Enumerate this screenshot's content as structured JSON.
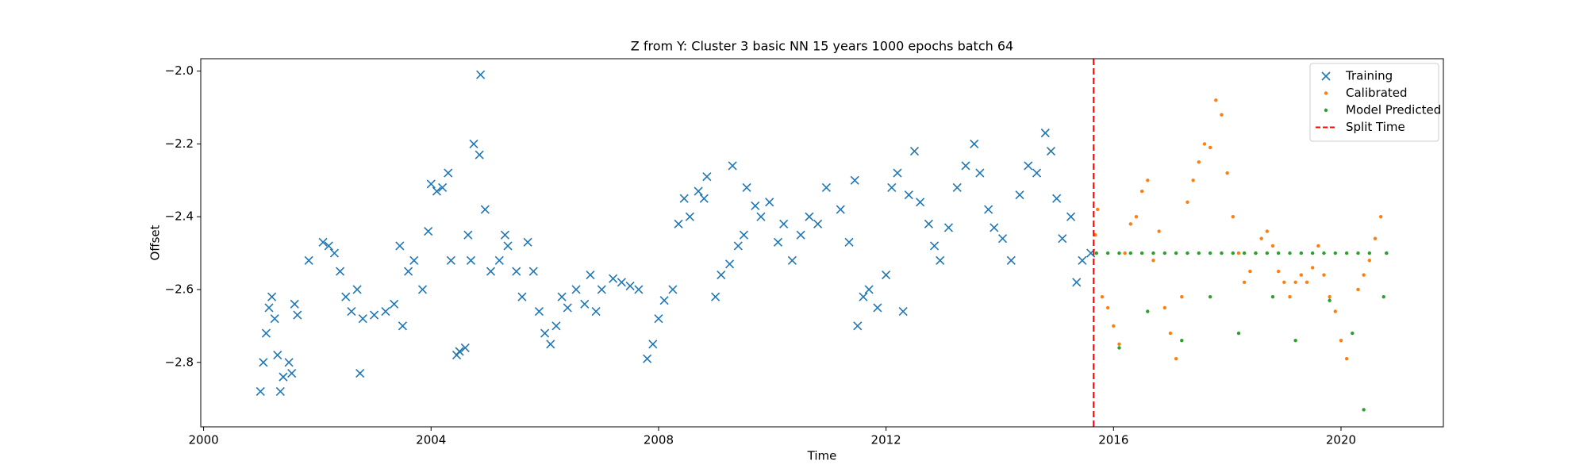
{
  "chart_data": {
    "type": "scatter",
    "title": "Z from Y: Cluster 3 basic NN 15 years 1000 epochs batch 64",
    "x_label": "Time",
    "y_label": "Offset",
    "xlim": [
      1999.95,
      2021.8
    ],
    "ylim": [
      -2.977,
      -1.966
    ],
    "xticks": [
      2000,
      2004,
      2008,
      2012,
      2016,
      2020
    ],
    "yticks": [
      {
        "value": -2.8,
        "label": "−2.8"
      },
      {
        "value": -2.6,
        "label": "−2.6"
      },
      {
        "value": -2.4,
        "label": "−2.4"
      },
      {
        "value": -2.2,
        "label": "−2.2"
      },
      {
        "value": -2.0,
        "label": "−2.0"
      }
    ],
    "legend": "upper right",
    "series": [
      {
        "name": "Training",
        "color": "#1f77b4",
        "marker": "x",
        "x": [
          2001.0,
          2001.05,
          2001.1,
          2001.15,
          2001.2,
          2001.25,
          2001.3,
          2001.35,
          2001.4,
          2001.5,
          2001.55,
          2001.6,
          2001.65,
          2001.85,
          2002.1,
          2002.2,
          2002.3,
          2002.4,
          2002.5,
          2002.6,
          2002.7,
          2002.75,
          2002.8,
          2003.0,
          2003.2,
          2003.35,
          2003.45,
          2003.5,
          2003.6,
          2003.7,
          2003.85,
          2003.95,
          2004.0,
          2004.1,
          2004.2,
          2004.3,
          2004.35,
          2004.45,
          2004.5,
          2004.6,
          2004.65,
          2004.7,
          2004.75,
          2004.85,
          2004.87,
          2004.95,
          2005.05,
          2005.2,
          2005.3,
          2005.35,
          2005.5,
          2005.6,
          2005.7,
          2005.8,
          2005.9,
          2006.0,
          2006.1,
          2006.2,
          2006.3,
          2006.4,
          2006.55,
          2006.7,
          2006.8,
          2006.9,
          2007.0,
          2007.2,
          2007.35,
          2007.5,
          2007.65,
          2007.8,
          2007.9,
          2008.0,
          2008.1,
          2008.25,
          2008.35,
          2008.45,
          2008.55,
          2008.7,
          2008.8,
          2008.85,
          2009.0,
          2009.1,
          2009.25,
          2009.3,
          2009.4,
          2009.5,
          2009.55,
          2009.7,
          2009.8,
          2009.95,
          2010.1,
          2010.2,
          2010.35,
          2010.5,
          2010.65,
          2010.8,
          2010.95,
          2011.2,
          2011.35,
          2011.45,
          2011.5,
          2011.6,
          2011.7,
          2011.85,
          2012.0,
          2012.1,
          2012.2,
          2012.3,
          2012.4,
          2012.5,
          2012.6,
          2012.75,
          2012.85,
          2012.95,
          2013.1,
          2013.25,
          2013.4,
          2013.55,
          2013.65,
          2013.8,
          2013.9,
          2014.05,
          2014.2,
          2014.35,
          2014.5,
          2014.65,
          2014.8,
          2014.9,
          2015.0,
          2015.1,
          2015.25,
          2015.35,
          2015.45,
          2015.6
        ],
        "values": [
          -2.88,
          -2.8,
          -2.72,
          -2.65,
          -2.62,
          -2.68,
          -2.78,
          -2.88,
          -2.84,
          -2.8,
          -2.83,
          -2.64,
          -2.67,
          -2.52,
          -2.47,
          -2.48,
          -2.5,
          -2.55,
          -2.62,
          -2.66,
          -2.6,
          -2.83,
          -2.68,
          -2.67,
          -2.66,
          -2.64,
          -2.48,
          -2.7,
          -2.55,
          -2.52,
          -2.6,
          -2.44,
          -2.31,
          -2.33,
          -2.32,
          -2.28,
          -2.52,
          -2.78,
          -2.77,
          -2.76,
          -2.45,
          -2.52,
          -2.2,
          -2.23,
          -2.01,
          -2.38,
          -2.55,
          -2.52,
          -2.45,
          -2.48,
          -2.55,
          -2.62,
          -2.47,
          -2.55,
          -2.66,
          -2.72,
          -2.75,
          -2.7,
          -2.62,
          -2.65,
          -2.6,
          -2.64,
          -2.56,
          -2.66,
          -2.6,
          -2.57,
          -2.58,
          -2.59,
          -2.6,
          -2.79,
          -2.75,
          -2.68,
          -2.63,
          -2.6,
          -2.42,
          -2.35,
          -2.4,
          -2.33,
          -2.35,
          -2.29,
          -2.62,
          -2.56,
          -2.53,
          -2.26,
          -2.48,
          -2.45,
          -2.32,
          -2.37,
          -2.4,
          -2.36,
          -2.47,
          -2.42,
          -2.52,
          -2.45,
          -2.4,
          -2.42,
          -2.32,
          -2.38,
          -2.47,
          -2.3,
          -2.7,
          -2.62,
          -2.6,
          -2.65,
          -2.56,
          -2.32,
          -2.28,
          -2.66,
          -2.34,
          -2.22,
          -2.36,
          -2.42,
          -2.48,
          -2.52,
          -2.43,
          -2.32,
          -2.26,
          -2.2,
          -2.28,
          -2.38,
          -2.43,
          -2.46,
          -2.52,
          -2.34,
          -2.26,
          -2.28,
          -2.17,
          -2.22,
          -2.35,
          -2.46,
          -2.4,
          -2.58,
          -2.52,
          -2.5
        ]
      },
      {
        "name": "Calibrated",
        "color": "#ff7f0e",
        "marker": "dot",
        "x": [
          2015.68,
          2015.72,
          2015.8,
          2015.9,
          2016.0,
          2016.1,
          2016.2,
          2016.3,
          2016.4,
          2016.5,
          2016.6,
          2016.7,
          2016.8,
          2016.9,
          2017.0,
          2017.1,
          2017.2,
          2017.3,
          2017.4,
          2017.5,
          2017.6,
          2017.7,
          2017.8,
          2017.9,
          2018.0,
          2018.1,
          2018.2,
          2018.3,
          2018.4,
          2018.5,
          2018.6,
          2018.7,
          2018.8,
          2018.9,
          2019.0,
          2019.1,
          2019.2,
          2019.3,
          2019.4,
          2019.5,
          2019.6,
          2019.7,
          2019.8,
          2019.9,
          2020.0,
          2020.1,
          2020.3,
          2020.4,
          2020.5,
          2020.6,
          2020.7,
          2020.8
        ],
        "values": [
          -2.45,
          -2.38,
          -2.62,
          -2.65,
          -2.7,
          -2.75,
          -2.5,
          -2.42,
          -2.4,
          -2.33,
          -2.3,
          -2.52,
          -2.44,
          -2.65,
          -2.72,
          -2.79,
          -2.62,
          -2.36,
          -2.3,
          -2.25,
          -2.2,
          -2.21,
          -2.08,
          -2.12,
          -2.28,
          -2.4,
          -2.5,
          -2.58,
          -2.55,
          -2.5,
          -2.46,
          -2.44,
          -2.48,
          -2.55,
          -2.58,
          -2.62,
          -2.58,
          -2.56,
          -2.58,
          -2.54,
          -2.48,
          -2.56,
          -2.62,
          -2.66,
          -2.74,
          -2.79,
          -2.6,
          -2.56,
          -2.52,
          -2.46,
          -2.4,
          -2.5
        ]
      },
      {
        "name": "Model Predicted",
        "color": "#2ca02c",
        "marker": "dot",
        "x": [
          2015.7,
          2015.9,
          2016.1,
          2016.3,
          2016.5,
          2016.7,
          2016.9,
          2017.1,
          2017.3,
          2017.5,
          2017.7,
          2017.9,
          2018.1,
          2018.3,
          2018.5,
          2018.7,
          2018.9,
          2019.1,
          2019.3,
          2019.5,
          2019.7,
          2019.9,
          2020.1,
          2020.3,
          2020.5,
          2020.8,
          2016.1,
          2016.6,
          2017.2,
          2017.7,
          2018.2,
          2018.8,
          2019.2,
          2019.8,
          2020.2,
          2020.4,
          2020.75
        ],
        "values": [
          -2.5,
          -2.5,
          -2.5,
          -2.5,
          -2.5,
          -2.5,
          -2.5,
          -2.5,
          -2.5,
          -2.5,
          -2.5,
          -2.5,
          -2.5,
          -2.5,
          -2.5,
          -2.5,
          -2.5,
          -2.5,
          -2.5,
          -2.5,
          -2.5,
          -2.5,
          -2.5,
          -2.5,
          -2.5,
          -2.5,
          -2.76,
          -2.66,
          -2.74,
          -2.62,
          -2.72,
          -2.62,
          -2.74,
          -2.63,
          -2.72,
          -2.93,
          -2.62
        ]
      }
    ],
    "split": {
      "name": "Split Time",
      "x": 2015.65,
      "color": "#ff0000"
    }
  }
}
